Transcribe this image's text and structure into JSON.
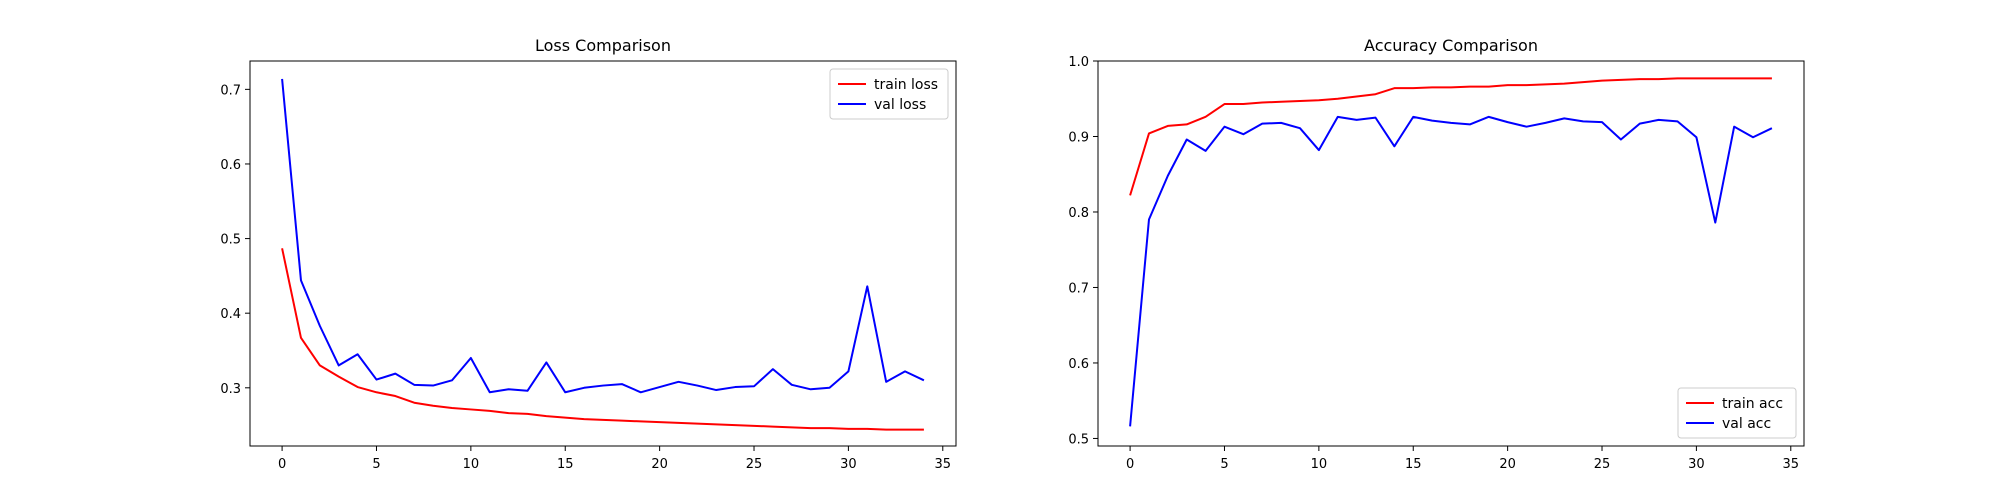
{
  "chart_data": [
    {
      "type": "line",
      "title": "Loss Comparison",
      "xlabel": "",
      "ylabel": "",
      "xlim": [
        -1.7,
        35.7
      ],
      "ylim": [
        0.222,
        0.738
      ],
      "xticks": [
        0,
        5,
        10,
        15,
        20,
        25,
        30,
        35
      ],
      "xtick_labels": [
        "0",
        "5",
        "10",
        "15",
        "20",
        "25",
        "30",
        "35"
      ],
      "yticks": [
        0.3,
        0.4,
        0.5,
        0.6,
        0.7
      ],
      "ytick_labels": [
        "0.3",
        "0.4",
        "0.5",
        "0.6",
        "0.7"
      ],
      "grid": false,
      "legend_position": "top-right",
      "x": [
        0,
        1,
        2,
        3,
        4,
        5,
        6,
        7,
        8,
        9,
        10,
        11,
        12,
        13,
        14,
        15,
        16,
        17,
        18,
        19,
        20,
        21,
        22,
        23,
        24,
        25,
        26,
        27,
        28,
        29,
        30,
        31,
        32,
        33,
        34
      ],
      "series": [
        {
          "name": "train loss",
          "color": "#ff0000",
          "values": [
            0.487,
            0.367,
            0.33,
            0.315,
            0.301,
            0.294,
            0.289,
            0.28,
            0.276,
            0.273,
            0.271,
            0.269,
            0.266,
            0.265,
            0.262,
            0.26,
            0.258,
            0.257,
            0.256,
            0.255,
            0.254,
            0.253,
            0.252,
            0.251,
            0.25,
            0.249,
            0.248,
            0.247,
            0.246,
            0.246,
            0.245,
            0.245,
            0.244,
            0.244,
            0.244
          ]
        },
        {
          "name": "val loss",
          "color": "#0000ff",
          "values": [
            0.714,
            0.444,
            0.383,
            0.33,
            0.345,
            0.311,
            0.319,
            0.304,
            0.303,
            0.31,
            0.34,
            0.294,
            0.298,
            0.296,
            0.334,
            0.294,
            0.3,
            0.303,
            0.305,
            0.294,
            0.301,
            0.308,
            0.303,
            0.297,
            0.301,
            0.302,
            0.325,
            0.304,
            0.298,
            0.3,
            0.322,
            0.436,
            0.308,
            0.322,
            0.31
          ]
        }
      ]
    },
    {
      "type": "line",
      "title": "Accuracy Comparison",
      "xlabel": "",
      "ylabel": "",
      "xlim": [
        -1.7,
        35.7
      ],
      "ylim": [
        0.49,
        1.0
      ],
      "xticks": [
        0,
        5,
        10,
        15,
        20,
        25,
        30,
        35
      ],
      "xtick_labels": [
        "0",
        "5",
        "10",
        "15",
        "20",
        "25",
        "30",
        "35"
      ],
      "yticks": [
        0.5,
        0.6,
        0.7,
        0.8,
        0.9,
        1.0
      ],
      "ytick_labels": [
        "0.5",
        "0.6",
        "0.7",
        "0.8",
        "0.9",
        "1.0"
      ],
      "grid": false,
      "legend_position": "bottom-right",
      "x": [
        0,
        1,
        2,
        3,
        4,
        5,
        6,
        7,
        8,
        9,
        10,
        11,
        12,
        13,
        14,
        15,
        16,
        17,
        18,
        19,
        20,
        21,
        22,
        23,
        24,
        25,
        26,
        27,
        28,
        29,
        30,
        31,
        32,
        33,
        34
      ],
      "series": [
        {
          "name": "train acc",
          "color": "#ff0000",
          "values": [
            0.822,
            0.904,
            0.914,
            0.916,
            0.926,
            0.943,
            0.943,
            0.945,
            0.946,
            0.947,
            0.948,
            0.95,
            0.953,
            0.956,
            0.964,
            0.964,
            0.965,
            0.965,
            0.966,
            0.966,
            0.968,
            0.968,
            0.969,
            0.97,
            0.972,
            0.974,
            0.975,
            0.976,
            0.976,
            0.977,
            0.977,
            0.977,
            0.977,
            0.977,
            0.977
          ]
        },
        {
          "name": "val acc",
          "color": "#0000ff",
          "values": [
            0.516,
            0.79,
            0.848,
            0.896,
            0.881,
            0.913,
            0.903,
            0.917,
            0.918,
            0.911,
            0.882,
            0.926,
            0.922,
            0.925,
            0.887,
            0.926,
            0.921,
            0.918,
            0.916,
            0.926,
            0.919,
            0.913,
            0.918,
            0.924,
            0.92,
            0.919,
            0.896,
            0.917,
            0.922,
            0.92,
            0.899,
            0.786,
            0.913,
            0.899,
            0.911
          ]
        }
      ]
    }
  ]
}
